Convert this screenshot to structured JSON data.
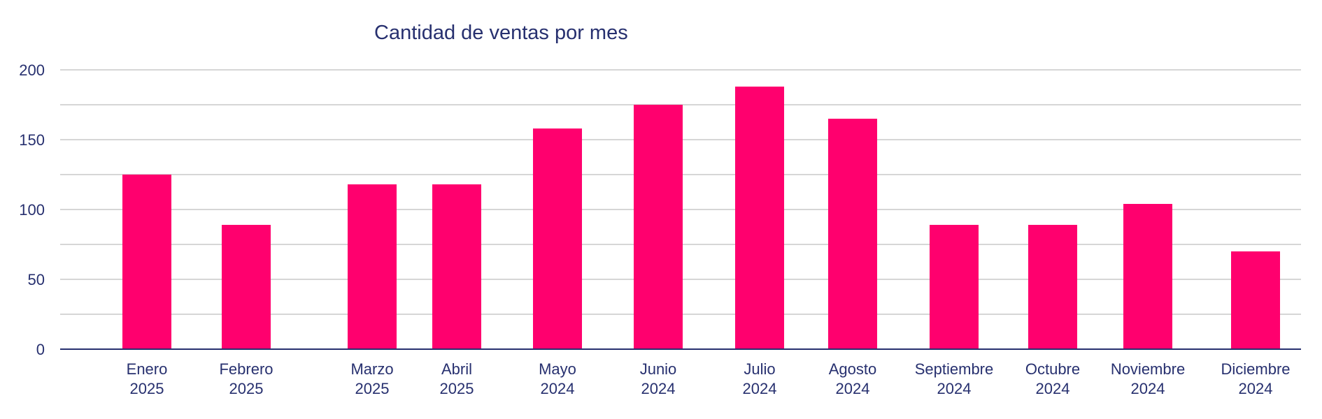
{
  "chart_data": {
    "type": "bar",
    "title": "Cantidad de ventas por mes",
    "xlabel": "",
    "ylabel": "",
    "categories": [
      [
        "Enero",
        "2025"
      ],
      [
        "Febrero",
        "2025"
      ],
      [
        "Marzo",
        "2025"
      ],
      [
        "Abril",
        "2025"
      ],
      [
        "Mayo",
        "2024"
      ],
      [
        "Junio",
        "2024"
      ],
      [
        "Julio",
        "2024"
      ],
      [
        "Agosto",
        "2024"
      ],
      [
        "Septiembre",
        "2024"
      ],
      [
        "Octubre",
        "2024"
      ],
      [
        "Noviembre",
        "2024"
      ],
      [
        "Diciembre",
        "2024"
      ]
    ],
    "values": [
      125,
      89,
      118,
      118,
      158,
      175,
      188,
      165,
      89,
      89,
      104,
      70
    ],
    "ylim": [
      0,
      200
    ],
    "yticks": [
      "0",
      "50",
      "100",
      "150",
      "200"
    ],
    "grid": true,
    "legend": "none",
    "colors": {
      "bar": "#ff006e",
      "text": "#27306f",
      "grid": "#c9c9c9",
      "axis": "#27306f"
    }
  }
}
